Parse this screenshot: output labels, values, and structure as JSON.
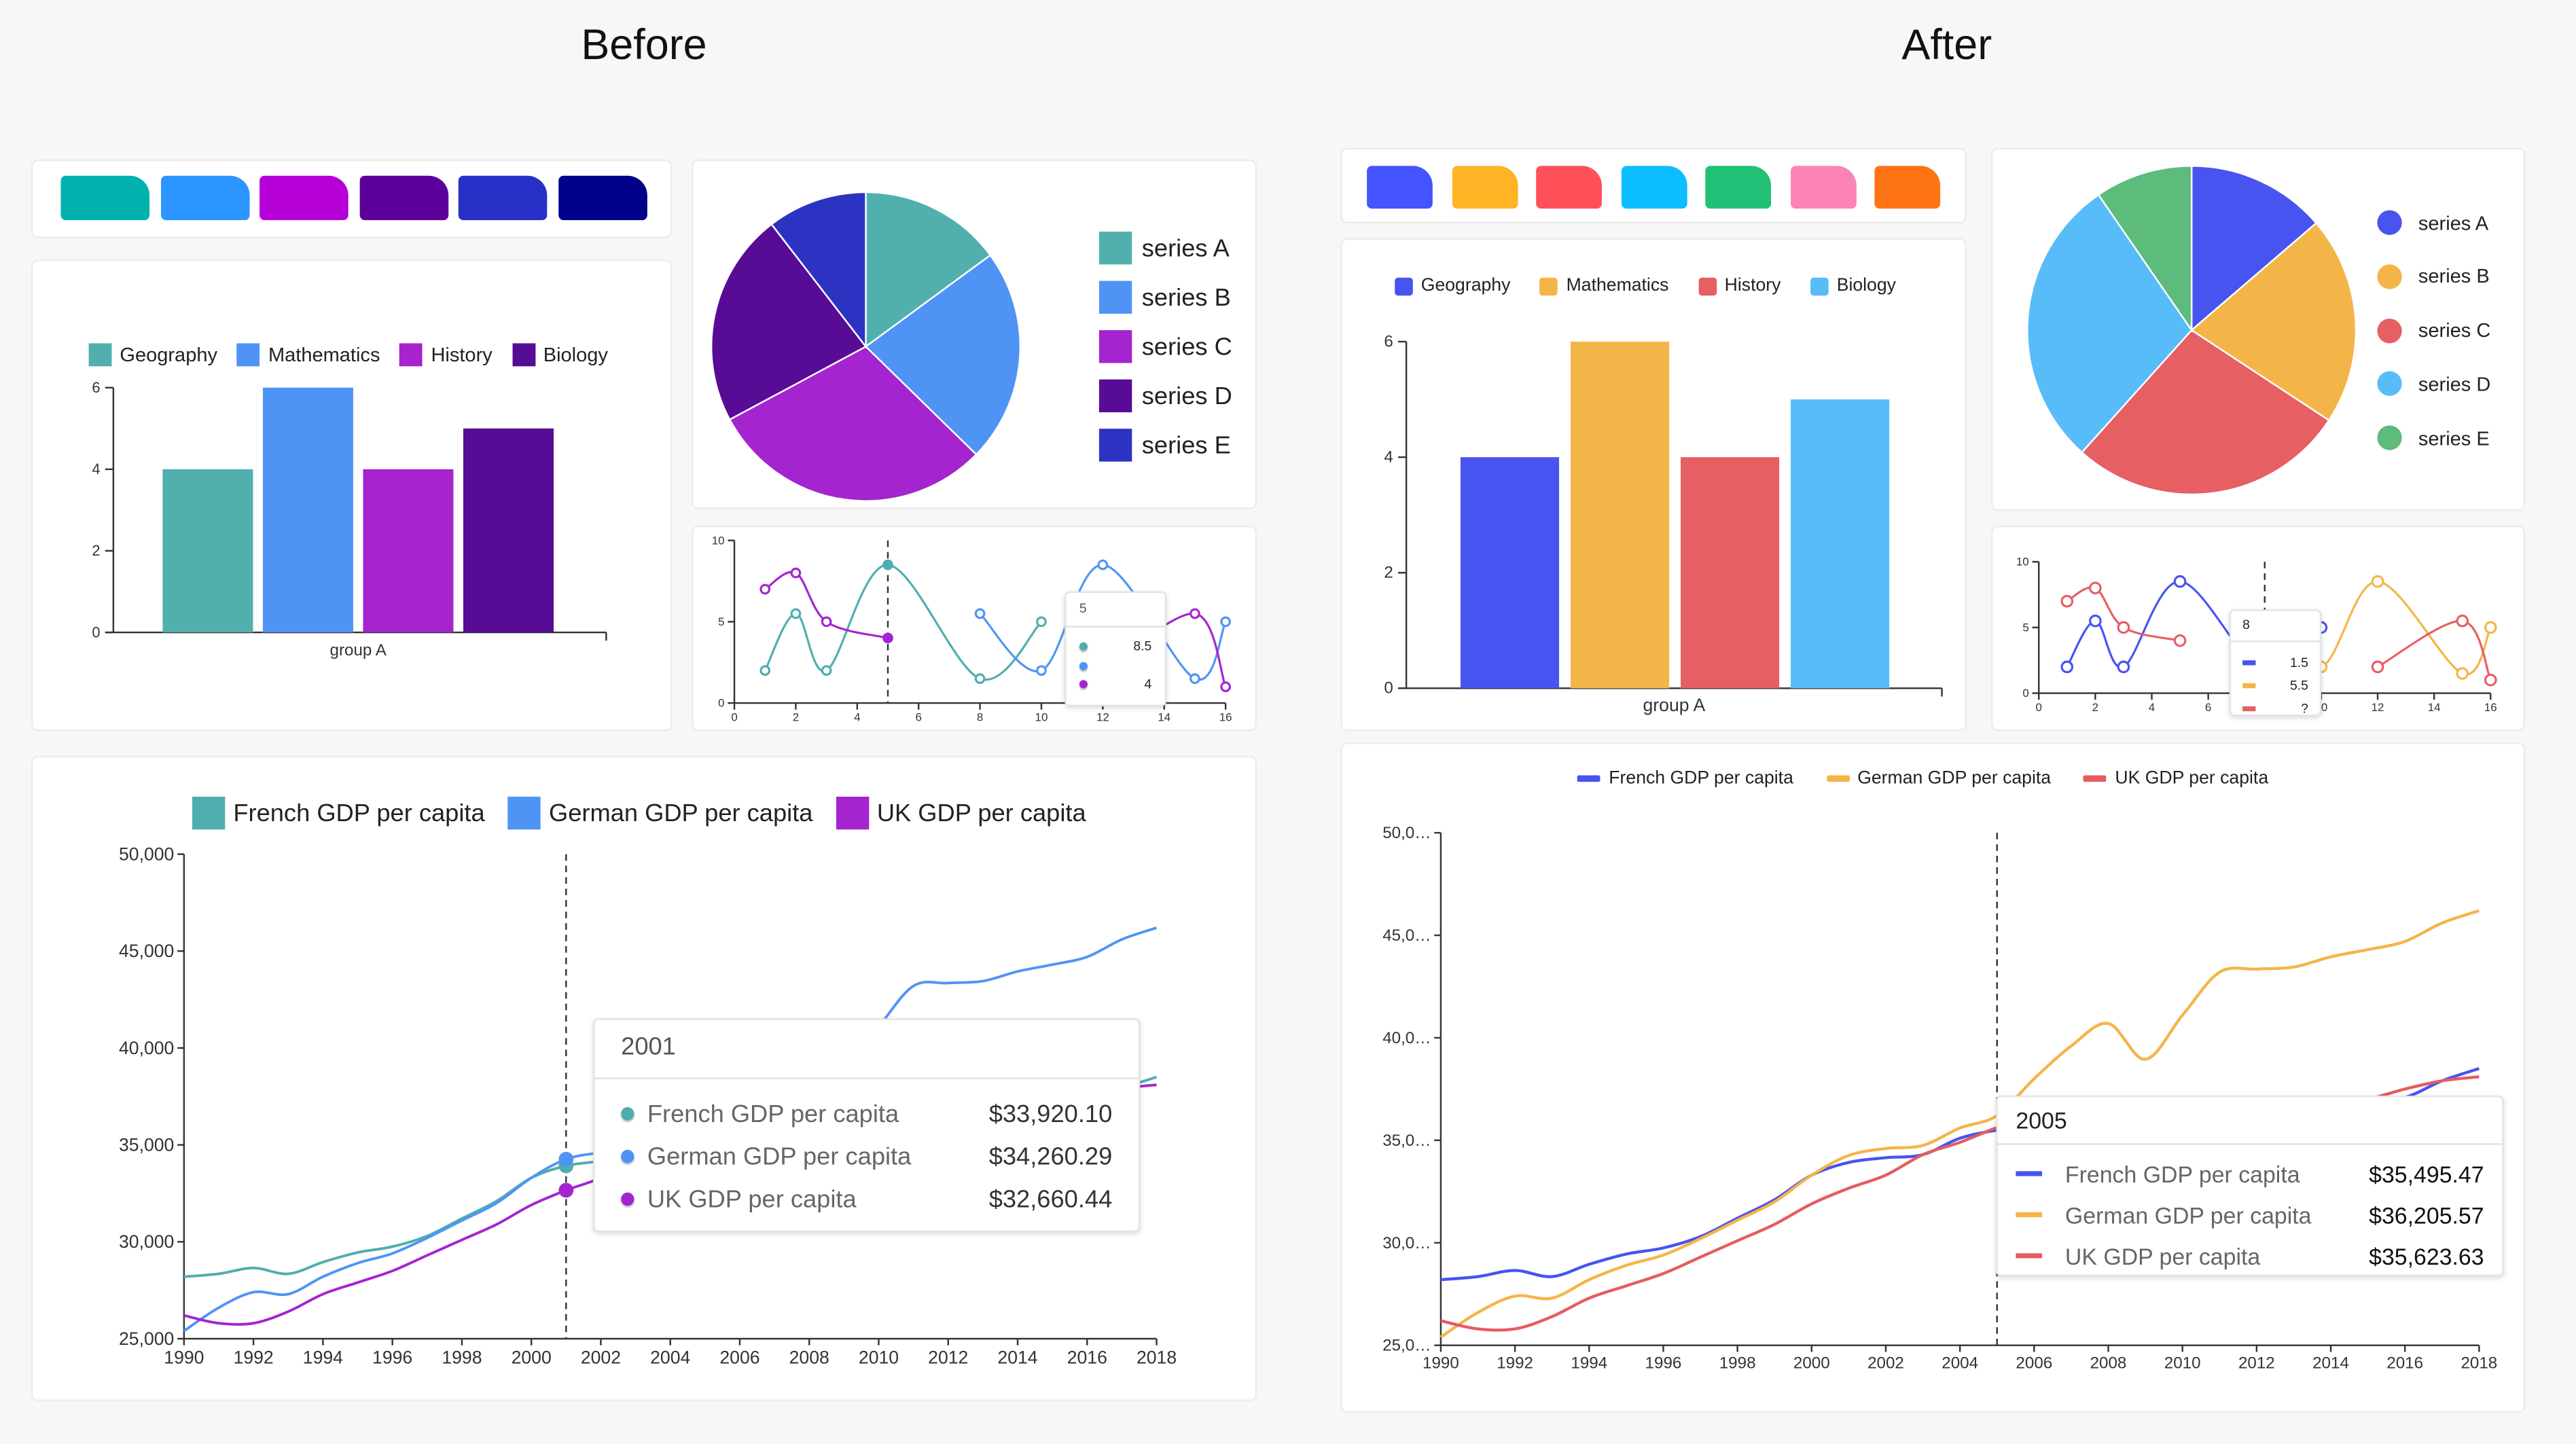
{
  "titles": {
    "before": "Before",
    "after": "After"
  },
  "before": {
    "palette": [
      "#00B1AE",
      "#2C95FF",
      "#B501D8",
      "#5D0099",
      "#2731C8",
      "#00008A"
    ],
    "bar_chart": {
      "type": "bar",
      "categories": [
        "group A"
      ],
      "series": [
        {
          "name": "Geography",
          "values": [
            4
          ],
          "color": "#51AFAE"
        },
        {
          "name": "Mathematics",
          "values": [
            6
          ],
          "color": "#4F94F5"
        },
        {
          "name": "History",
          "values": [
            4
          ],
          "color": "#A623CE"
        },
        {
          "name": "Biology",
          "values": [
            5
          ],
          "color": "#560C94"
        }
      ],
      "ylim": [
        0,
        6
      ],
      "yticks": [
        "0",
        "2",
        "4",
        "6"
      ],
      "legend": "top"
    },
    "pie_chart": {
      "type": "pie",
      "slices": [
        {
          "name": "series A",
          "value": 10,
          "color": "#51B0AE"
        },
        {
          "name": "series B",
          "value": 15,
          "color": "#4F94F5"
        },
        {
          "name": "series C",
          "value": 20,
          "color": "#A424CF"
        },
        {
          "name": "series D",
          "value": 15,
          "color": "#580C96"
        },
        {
          "name": "series E",
          "value": 7,
          "color": "#2C33C3"
        }
      ],
      "legend": "right"
    },
    "small_line_chart": {
      "type": "line",
      "x": [
        1,
        2,
        3,
        5,
        8,
        10,
        12,
        15,
        16
      ],
      "series": [
        {
          "values": [
            2,
            5.5,
            2,
            8.5,
            1.5,
            5,
            null,
            null,
            null
          ],
          "color": "#4FAEAD"
        },
        {
          "values": [
            null,
            null,
            null,
            null,
            5.5,
            2,
            8.5,
            1.5,
            5
          ],
          "color": "#4F94F5"
        },
        {
          "values": [
            7,
            8,
            5,
            4,
            null,
            null,
            2,
            5.5,
            1
          ],
          "color": "#A424CF"
        }
      ],
      "xlim": [
        0,
        16
      ],
      "ylim": [
        0,
        10
      ],
      "xticks": [
        "0",
        "2",
        "4",
        "6",
        "8",
        "10",
        "12",
        "14",
        "16"
      ],
      "yticks": [
        "0",
        "5",
        "10"
      ],
      "hover_x": 5,
      "tooltip": {
        "title": "5",
        "rows": [
          {
            "value": "8.5"
          },
          {
            "value": ""
          },
          {
            "value": "4"
          }
        ]
      }
    },
    "gdp_chart": {
      "type": "line",
      "x": [
        1990,
        1991,
        1992,
        1993,
        1994,
        1995,
        1996,
        1997,
        1998,
        1999,
        2000,
        2001,
        2002,
        2003,
        2004,
        2005,
        2006,
        2007,
        2008,
        2009,
        2010,
        2011,
        2012,
        2013,
        2014,
        2015,
        2016,
        2017,
        2018
      ],
      "series": [
        {
          "name": "French GDP per capita",
          "color": "#4FAEAD",
          "values": [
            28200,
            28350,
            28650,
            28350,
            28950,
            29450,
            29750,
            30300,
            31200,
            32100,
            33300,
            33920.1,
            34150,
            34300,
            35100,
            35495.47,
            35700,
            36200,
            36600,
            35700,
            36100,
            36600,
            36700,
            36700,
            36900,
            37000,
            37100,
            37900,
            38500
          ]
        },
        {
          "name": "German GDP per capita",
          "color": "#4F94F5",
          "values": [
            25400,
            26600,
            27400,
            27300,
            28200,
            28900,
            29400,
            30200,
            31100,
            32000,
            33300,
            34260.29,
            34600,
            34750,
            35600,
            36205.57,
            38000,
            39600,
            40700,
            38950,
            41100,
            43200,
            43350,
            43450,
            43950,
            44300,
            44700,
            45600,
            46200
          ]
        },
        {
          "name": "UK GDP per capita",
          "color": "#A424CF",
          "values": [
            26200,
            25800,
            25800,
            26400,
            27300,
            27900,
            28500,
            29300,
            30100,
            30900,
            31900,
            32660.44,
            33300,
            34300,
            34900,
            35623.63,
            36200,
            36700,
            36400,
            35300,
            35600,
            35900,
            36100,
            36400,
            36700,
            37000,
            37500,
            37900,
            38100
          ]
        }
      ],
      "xlim": [
        1990,
        2018
      ],
      "ylim": [
        25000,
        50000
      ],
      "xticks": [
        "1990",
        "1992",
        "1994",
        "1996",
        "1998",
        "2000",
        "2002",
        "2004",
        "2006",
        "2008",
        "2010",
        "2012",
        "2014",
        "2016",
        "2018"
      ],
      "yticks": [
        "25,000",
        "30,000",
        "35,000",
        "40,000",
        "45,000",
        "50,000"
      ],
      "hover_x": 2001,
      "legend": "top",
      "tooltip": {
        "title": "2001",
        "rows": [
          {
            "label": "French GDP per capita",
            "value": "$33,920.10"
          },
          {
            "label": "German GDP per capita",
            "value": "$34,260.29"
          },
          {
            "label": "UK GDP per capita",
            "value": "$32,660.44"
          }
        ]
      }
    }
  },
  "after": {
    "palette": [
      "#4454FF",
      "#FFB425",
      "#FF505A",
      "#0CBEFF",
      "#22C076",
      "#FC84B5",
      "#FF7414"
    ],
    "bar_chart": {
      "type": "bar",
      "categories": [
        "group A"
      ],
      "series": [
        {
          "name": "Geography",
          "values": [
            4
          ],
          "color": "#4754F0"
        },
        {
          "name": "Mathematics",
          "values": [
            6
          ],
          "color": "#F4B548"
        },
        {
          "name": "History",
          "values": [
            4
          ],
          "color": "#E55F63"
        },
        {
          "name": "Biology",
          "values": [
            5
          ],
          "color": "#58BCF9"
        }
      ],
      "ylim": [
        0,
        6
      ],
      "yticks": [
        "0",
        "2",
        "4",
        "6"
      ],
      "legend": "top"
    },
    "pie_chart": {
      "type": "pie",
      "slices": [
        {
          "name": "series A",
          "value": 10,
          "color": "#4754F0"
        },
        {
          "name": "series B",
          "value": 15,
          "color": "#F4B548"
        },
        {
          "name": "series C",
          "value": 20,
          "color": "#E55F63"
        },
        {
          "name": "series D",
          "value": 21,
          "color": "#58BCF9"
        },
        {
          "name": "series E",
          "value": 7,
          "color": "#5DBB7B"
        }
      ],
      "legend": "right"
    },
    "small_line_chart": {
      "type": "line",
      "x": [
        1,
        2,
        3,
        5,
        8,
        10,
        12,
        15,
        16
      ],
      "series": [
        {
          "values": [
            2,
            5.5,
            2,
            8.5,
            1.5,
            5,
            null,
            null,
            null
          ],
          "color": "#4754F0"
        },
        {
          "values": [
            null,
            null,
            null,
            null,
            5.5,
            2,
            8.5,
            1.5,
            5
          ],
          "color": "#F4B548"
        },
        {
          "values": [
            7,
            8,
            5,
            4,
            null,
            null,
            2,
            5.5,
            1
          ],
          "color": "#E55F63"
        }
      ],
      "xlim": [
        0,
        16
      ],
      "ylim": [
        0,
        10
      ],
      "xticks": [
        "0",
        "2",
        "4",
        "6",
        "8",
        "10",
        "12",
        "14",
        "16"
      ],
      "yticks": [
        "0",
        "5",
        "10"
      ],
      "hover_x": 8,
      "tooltip": {
        "title": "8",
        "rows": [
          {
            "value": "1.5"
          },
          {
            "value": "5.5"
          },
          {
            "value": "?"
          }
        ]
      }
    },
    "gdp_chart": {
      "type": "line",
      "x": [
        1990,
        1991,
        1992,
        1993,
        1994,
        1995,
        1996,
        1997,
        1998,
        1999,
        2000,
        2001,
        2002,
        2003,
        2004,
        2005,
        2006,
        2007,
        2008,
        2009,
        2010,
        2011,
        2012,
        2013,
        2014,
        2015,
        2016,
        2017,
        2018
      ],
      "series": [
        {
          "name": "French GDP per capita",
          "color": "#4654F0",
          "values": [
            28200,
            28350,
            28650,
            28350,
            28950,
            29450,
            29750,
            30300,
            31200,
            32100,
            33300,
            33920.1,
            34150,
            34300,
            35100,
            35495.47,
            35700,
            36200,
            36600,
            35700,
            36100,
            36600,
            36700,
            36700,
            36900,
            37000,
            37100,
            37900,
            38500
          ]
        },
        {
          "name": "German GDP per capita",
          "color": "#F4B548",
          "values": [
            25400,
            26600,
            27400,
            27300,
            28200,
            28900,
            29400,
            30200,
            31100,
            32000,
            33300,
            34260.29,
            34600,
            34750,
            35600,
            36205.57,
            38000,
            39600,
            40700,
            38950,
            41100,
            43200,
            43350,
            43450,
            43950,
            44300,
            44700,
            45600,
            46200
          ]
        },
        {
          "name": "UK GDP per capita",
          "color": "#E55C61",
          "values": [
            26200,
            25800,
            25800,
            26400,
            27300,
            27900,
            28500,
            29300,
            30100,
            30900,
            31900,
            32660.44,
            33300,
            34300,
            34900,
            35623.63,
            36200,
            36700,
            36400,
            35300,
            35600,
            35900,
            36100,
            36400,
            36700,
            37000,
            37500,
            37900,
            38100
          ]
        }
      ],
      "xlim": [
        1990,
        2018
      ],
      "ylim": [
        25000,
        50000
      ],
      "xticks": [
        "1990",
        "1992",
        "1994",
        "1996",
        "1998",
        "2000",
        "2002",
        "2004",
        "2006",
        "2008",
        "2010",
        "2012",
        "2014",
        "2016",
        "2018"
      ],
      "yticks": [
        "25,0…",
        "30,0…",
        "35,0…",
        "40,0…",
        "45,0…",
        "50,0…"
      ],
      "hover_x": 2005,
      "legend": "top",
      "tooltip": {
        "title": "2005",
        "rows": [
          {
            "label": "French GDP per capita",
            "value": "$35,495.47"
          },
          {
            "label": "German GDP per capita",
            "value": "$36,205.57"
          },
          {
            "label": "UK GDP per capita",
            "value": "$35,623.63"
          }
        ]
      }
    }
  }
}
